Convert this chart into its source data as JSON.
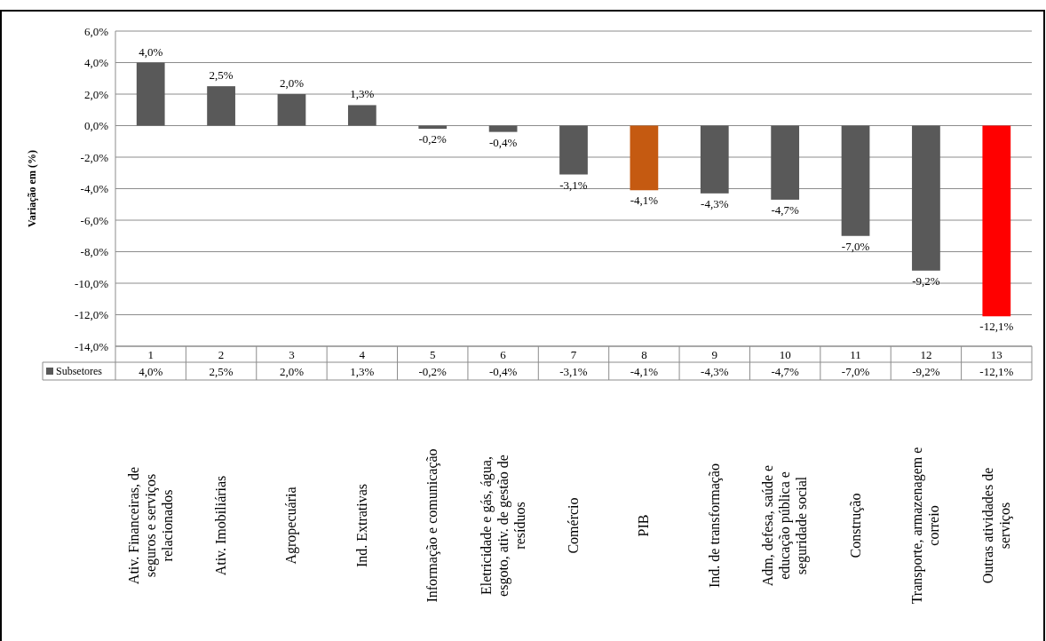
{
  "chart_data": {
    "type": "bar",
    "ylabel": "Variação em (%)",
    "categories": [
      "Ativ. Financeiras, de seguros e serviços relacionados",
      "Ativ. Imobiliárias",
      "Agropecuária",
      "Ind. Extrativas",
      "Informação e comunicação",
      "Eletricidade e gás, água, esgoto, ativ. de gestão de resíduos",
      "Comércio",
      "PIB",
      "Ind. de transformação",
      "Adm, defesa, saúde e educação pública e seguridade social",
      "Construção",
      "Transporte, armazenagem e correio",
      "Outras atividades de serviços"
    ],
    "series": [
      {
        "name": "Subsetores",
        "color": "#595959",
        "colors": [
          "#595959",
          "#595959",
          "#595959",
          "#595959",
          "#595959",
          "#595959",
          "#595959",
          "#c55a11",
          "#595959",
          "#595959",
          "#595959",
          "#595959",
          "#ff0000"
        ],
        "values": [
          4.0,
          2.5,
          2.0,
          1.3,
          -0.2,
          -0.4,
          -3.1,
          -4.1,
          -4.3,
          -4.7,
          -7.0,
          -9.2,
          -12.1
        ],
        "value_labels": [
          "4,0%",
          "2,5%",
          "2,0%",
          "1,3%",
          "-0,2%",
          "-0,4%",
          "-3,1%",
          "-4,1%",
          "-4,3%",
          "-4,7%",
          "-7,0%",
          "-9,2%",
          "-12,1%"
        ]
      }
    ],
    "ylim": [
      -14,
      6
    ],
    "yticks": [
      {
        "value": 6,
        "label": "6,0%"
      },
      {
        "value": 4,
        "label": "4,0%"
      },
      {
        "value": 2,
        "label": "2,0%"
      },
      {
        "value": 0,
        "label": "0,0%"
      },
      {
        "value": -2,
        "label": "-2,0%"
      },
      {
        "value": -4,
        "label": "-4,0%"
      },
      {
        "value": -6,
        "label": "-6,0%"
      },
      {
        "value": -8,
        "label": "-8,0%"
      },
      {
        "value": -10,
        "label": "-10,0%"
      },
      {
        "value": -12,
        "label": "-12,0%"
      },
      {
        "value": -14,
        "label": "-14,0%"
      }
    ],
    "grid": "y",
    "legend": "bottom left",
    "annotations": [
      "1",
      "2",
      "3",
      "4",
      "5",
      "6",
      "7",
      "8",
      "9",
      "10",
      "11",
      "12",
      "13"
    ]
  }
}
